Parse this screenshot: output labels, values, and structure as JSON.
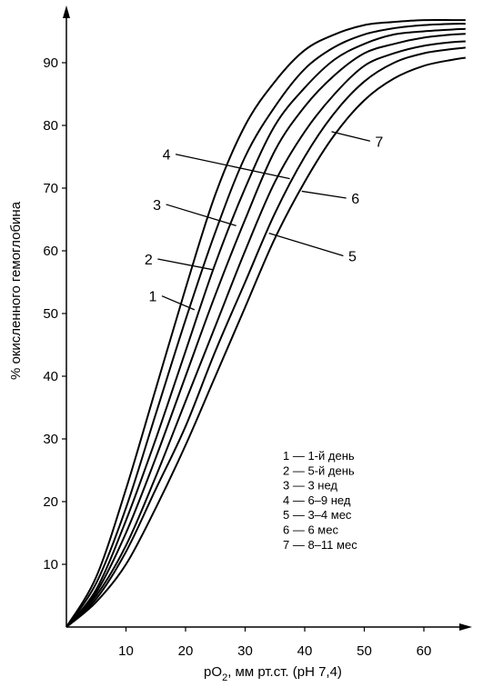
{
  "chart_data": {
    "type": "line",
    "xlabel": "pO",
    "xlabel_sub": "2",
    "xlabel_rest": ", мм рт.ст. (рН 7,4)",
    "ylabel": "% окисленного гемоглобина",
    "xlim": [
      0,
      68
    ],
    "ylim": [
      0,
      100
    ],
    "x_ticks": [
      10,
      20,
      30,
      40,
      50,
      60
    ],
    "y_ticks": [
      10,
      20,
      30,
      40,
      50,
      60,
      70,
      80,
      90
    ],
    "grid": false,
    "legend_position": "bottom-right",
    "legend": [
      "1 — 1-й день",
      "2 — 5-й день",
      "3 — 3 нед",
      "4 — 6–9 нед",
      "5 — 3–4 мес",
      "6 — 6 мес",
      "7 — 8–11 мес"
    ],
    "series": [
      {
        "name": "1",
        "x": [
          0,
          5,
          10,
          15,
          20,
          25,
          30,
          35,
          40,
          45,
          50,
          55,
          60,
          65,
          67
        ],
        "y": [
          0,
          8,
          22,
          38,
          54,
          69,
          80,
          87,
          92,
          94.5,
          96,
          96.5,
          96.8,
          96.8,
          96.8
        ]
      },
      {
        "name": "2",
        "x": [
          0,
          5,
          10,
          15,
          20,
          25,
          30,
          35,
          40,
          45,
          50,
          55,
          60,
          65,
          67
        ],
        "y": [
          0,
          7,
          19,
          34,
          49,
          63,
          75,
          83,
          89,
          92.5,
          94.5,
          95.5,
          96,
          96.2,
          96.2
        ]
      },
      {
        "name": "3",
        "x": [
          0,
          5,
          10,
          15,
          20,
          25,
          30,
          35,
          40,
          45,
          50,
          55,
          60,
          65,
          67
        ],
        "y": [
          0,
          6,
          17,
          30,
          44,
          58,
          70,
          80,
          86,
          90.5,
          93,
          94.5,
          95,
          95.3,
          95.4
        ]
      },
      {
        "name": "4",
        "x": [
          0,
          5,
          10,
          15,
          20,
          25,
          30,
          35,
          40,
          45,
          50,
          55,
          60,
          65,
          67
        ],
        "y": [
          0,
          5.5,
          15,
          27,
          40,
          53,
          65,
          76,
          83,
          88,
          91.5,
          93,
          94,
          94.5,
          94.6
        ]
      },
      {
        "name": "5",
        "x": [
          0,
          5,
          10,
          15,
          20,
          25,
          30,
          35,
          40,
          45,
          50,
          55,
          60,
          65,
          67
        ],
        "y": [
          0,
          5,
          13,
          24,
          36,
          48,
          60,
          71,
          79,
          85,
          89.5,
          91.5,
          92.7,
          93.3,
          93.4
        ]
      },
      {
        "name": "6",
        "x": [
          0,
          5,
          10,
          15,
          20,
          25,
          30,
          35,
          40,
          45,
          50,
          55,
          60,
          65,
          67
        ],
        "y": [
          0,
          4.5,
          12,
          22,
          32,
          44,
          55,
          66,
          75,
          82,
          87,
          90,
          91.5,
          92.2,
          92.4
        ]
      },
      {
        "name": "7",
        "x": [
          0,
          5,
          10,
          15,
          20,
          25,
          30,
          35,
          40,
          45,
          50,
          55,
          60,
          65,
          67
        ],
        "y": [
          0,
          4,
          10,
          19,
          29,
          40,
          51,
          62,
          71,
          78.5,
          84,
          87.5,
          89.5,
          90.5,
          90.8
        ]
      }
    ],
    "curve_labels": [
      {
        "text": "1",
        "x": 14.5,
        "y": 52.8,
        "tip_x": 21.5,
        "tip_y": 50.6
      },
      {
        "text": "2",
        "x": 13.8,
        "y": 58.7,
        "tip_x": 24.5,
        "tip_y": 57.0
      },
      {
        "text": "3",
        "x": 15.2,
        "y": 67.4,
        "tip_x": 28.5,
        "tip_y": 64.0
      },
      {
        "text": "4",
        "x": 16.8,
        "y": 75.4,
        "tip_x": 37.5,
        "tip_y": 71.5
      },
      {
        "text": "5",
        "x": 48.0,
        "y": 59.2,
        "tip_x": 34.0,
        "tip_y": 62.8
      },
      {
        "text": "6",
        "x": 48.5,
        "y": 68.4,
        "tip_x": 39.5,
        "tip_y": 69.5
      },
      {
        "text": "7",
        "x": 52.5,
        "y": 77.5,
        "tip_x": 44.5,
        "tip_y": 79.0
      }
    ]
  }
}
